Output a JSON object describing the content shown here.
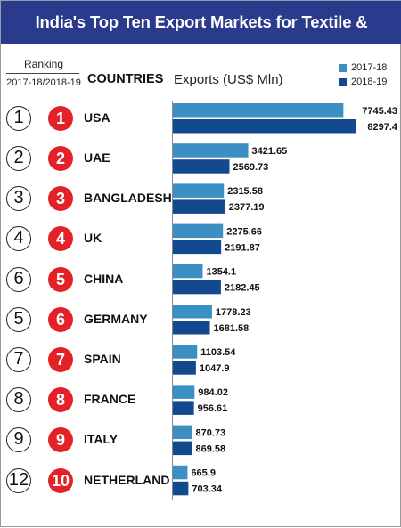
{
  "title": "India's Top Ten Export Markets for Textile & Clothing",
  "header": {
    "ranking_label": "Ranking",
    "ranking_years": "2017-18/2018-19",
    "countries_label": "COUNTRIES",
    "exports_label": "Exports (US$ Mln)"
  },
  "legend": [
    {
      "name": "2017-18",
      "color": "#3b8fc3"
    },
    {
      "name": "2018-19",
      "color": "#12498f"
    }
  ],
  "chart_data": {
    "type": "bar",
    "orientation": "horizontal",
    "categories": [
      "USA",
      "UAE",
      "BANGLADESH",
      "UK",
      "CHINA",
      "GERMANY",
      "SPAIN",
      "FRANCE",
      "ITALY",
      "NETHERLAND"
    ],
    "rank_2017_18": [
      "1",
      "2",
      "3",
      "4",
      "6",
      "5",
      "7",
      "8",
      "9",
      "12"
    ],
    "rank_2018_19": [
      "1",
      "2",
      "3",
      "4",
      "5",
      "6",
      "7",
      "8",
      "9",
      "10"
    ],
    "series": [
      {
        "name": "2017-18",
        "color": "#3b8fc3",
        "values": [
          7745.43,
          3421.65,
          2315.58,
          2275.66,
          1354.1,
          1778.23,
          1103.54,
          984.02,
          870.73,
          665.9
        ],
        "labels": [
          "7745.43",
          "3421.65",
          "2315.58",
          "2275.66",
          "1354.1",
          "1778.23",
          "1103.54",
          "984.02",
          "870.73",
          "665.9"
        ]
      },
      {
        "name": "2018-19",
        "color": "#12498f",
        "values": [
          8297.4,
          2569.73,
          2377.19,
          2191.87,
          2182.45,
          1681.58,
          1047.9,
          956.61,
          869.58,
          703.34
        ],
        "labels": [
          "8297.4",
          "2569.73",
          "2377.19",
          "2191.87",
          "2182.45",
          "1681.58",
          "1047.9",
          "956.61",
          "869.58",
          "703.34"
        ]
      }
    ],
    "legend_position": "top-right",
    "grid": false
  }
}
